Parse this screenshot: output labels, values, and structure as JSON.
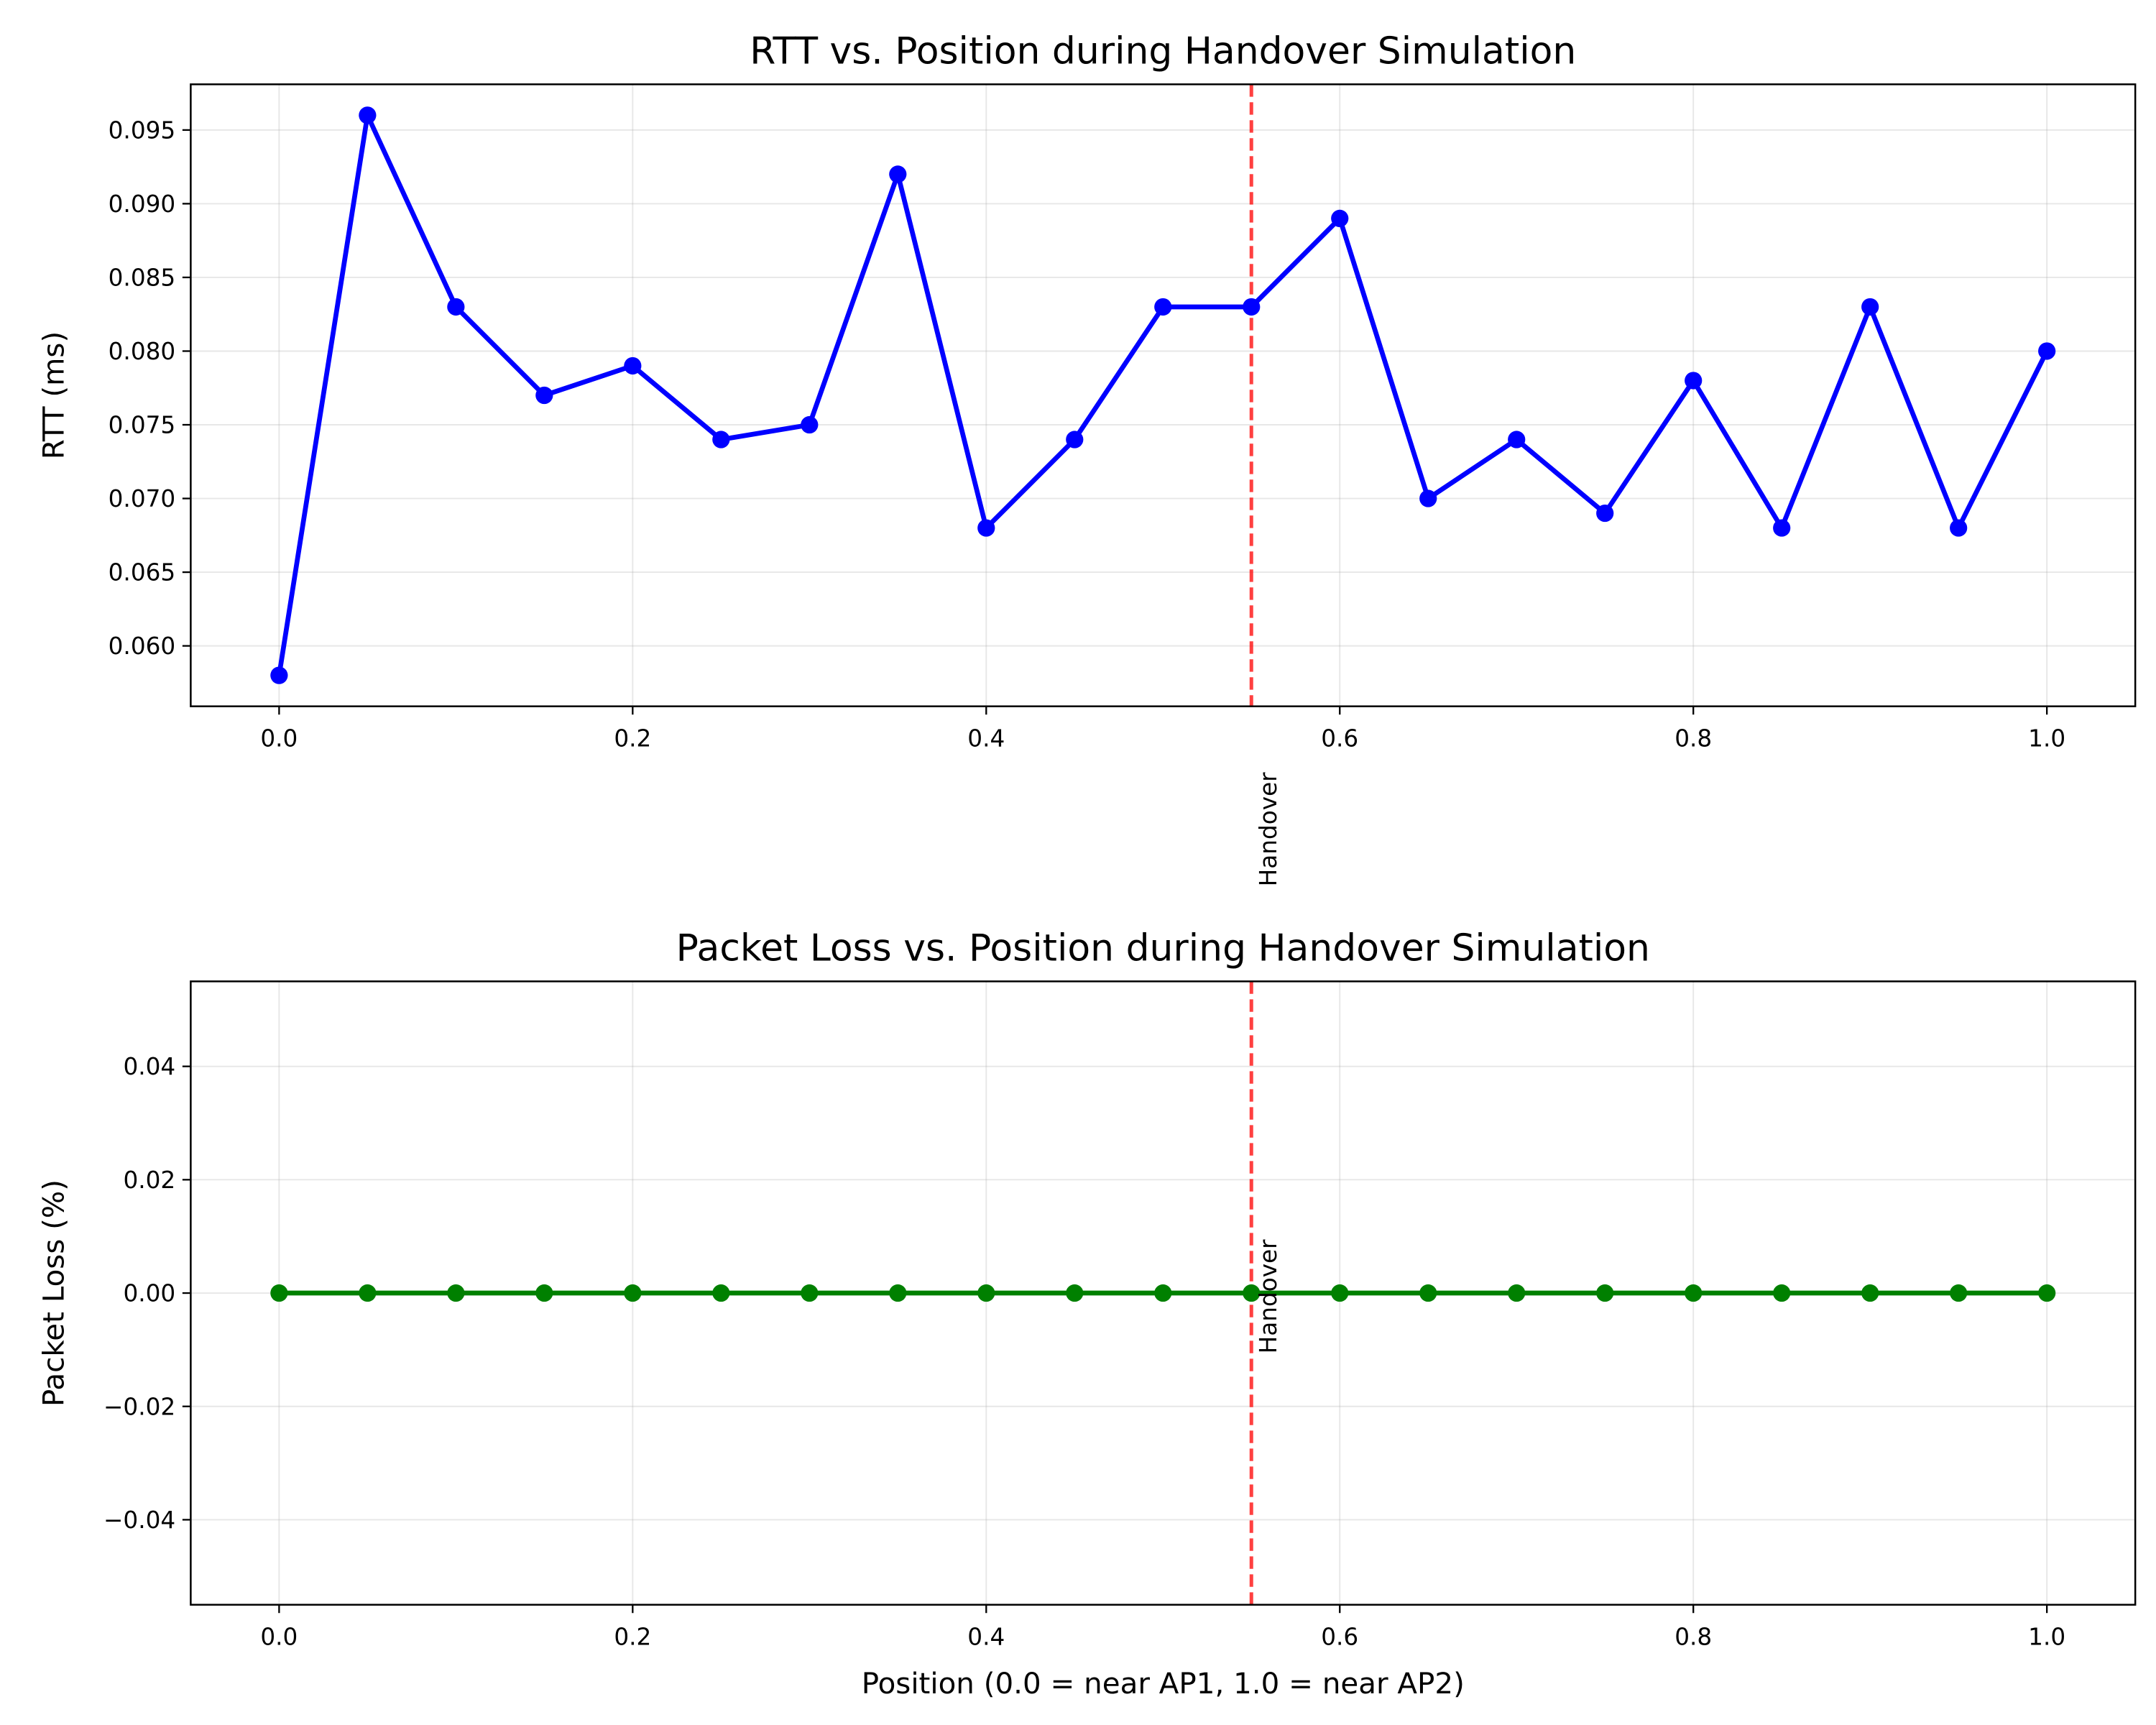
{
  "chart_data": [
    {
      "type": "line",
      "title": "RTT vs. Position during Handover Simulation",
      "xlabel": "",
      "ylabel": "RTT (ms)",
      "xlim": [
        -0.05,
        1.05
      ],
      "ylim": [
        0.0559,
        0.0981
      ],
      "xticks": [
        0.0,
        0.2,
        0.4,
        0.6,
        0.8,
        1.0
      ],
      "xtick_labels": [
        "0.0",
        "0.2",
        "0.4",
        "0.6",
        "0.8",
        "1.0"
      ],
      "yticks": [
        0.06,
        0.065,
        0.07,
        0.075,
        0.08,
        0.085,
        0.09,
        0.095
      ],
      "ytick_labels": [
        "0.060",
        "0.065",
        "0.070",
        "0.075",
        "0.080",
        "0.085",
        "0.090",
        "0.095"
      ],
      "grid": true,
      "series": [
        {
          "color": "#0000ff",
          "marker": "circle",
          "x": [
            0.0,
            0.05,
            0.1,
            0.15,
            0.2,
            0.25,
            0.3,
            0.35,
            0.4,
            0.45,
            0.5,
            0.55,
            0.6,
            0.65,
            0.7,
            0.75,
            0.8,
            0.85,
            0.9,
            0.95,
            1.0
          ],
          "values": [
            0.058,
            0.096,
            0.083,
            0.077,
            0.079,
            0.074,
            0.075,
            0.092,
            0.068,
            0.074,
            0.083,
            0.083,
            0.089,
            0.07,
            0.074,
            0.069,
            0.078,
            0.068,
            0.083,
            0.068,
            0.08
          ]
        }
      ],
      "vline": {
        "x": 0.55,
        "color": "#ff0000",
        "style": "dashed"
      },
      "annotation": {
        "text": "Handover",
        "x": 0.55
      }
    },
    {
      "type": "line",
      "title": "Packet Loss vs. Position during Handover Simulation",
      "xlabel": "Position (0.0 = near AP1, 1.0 = near AP2)",
      "ylabel": "Packet Loss (%)",
      "xlim": [
        -0.05,
        1.05
      ],
      "ylim": [
        -0.055,
        0.055
      ],
      "xticks": [
        0.0,
        0.2,
        0.4,
        0.6,
        0.8,
        1.0
      ],
      "xtick_labels": [
        "0.0",
        "0.2",
        "0.4",
        "0.6",
        "0.8",
        "1.0"
      ],
      "yticks": [
        -0.04,
        -0.02,
        0.0,
        0.02,
        0.04
      ],
      "ytick_labels": [
        "−0.04",
        "−0.02",
        "0.00",
        "0.02",
        "0.04"
      ],
      "grid": true,
      "series": [
        {
          "color": "#008000",
          "marker": "circle",
          "x": [
            0.0,
            0.05,
            0.1,
            0.15,
            0.2,
            0.25,
            0.3,
            0.35,
            0.4,
            0.45,
            0.5,
            0.55,
            0.6,
            0.65,
            0.7,
            0.75,
            0.8,
            0.85,
            0.9,
            0.95,
            1.0
          ],
          "values": [
            0,
            0,
            0,
            0,
            0,
            0,
            0,
            0,
            0,
            0,
            0,
            0,
            0,
            0,
            0,
            0,
            0,
            0,
            0,
            0,
            0
          ]
        }
      ],
      "vline": {
        "x": 0.55,
        "color": "#ff0000",
        "style": "dashed"
      },
      "annotation": {
        "text": "Handover",
        "x": 0.55
      }
    }
  ]
}
